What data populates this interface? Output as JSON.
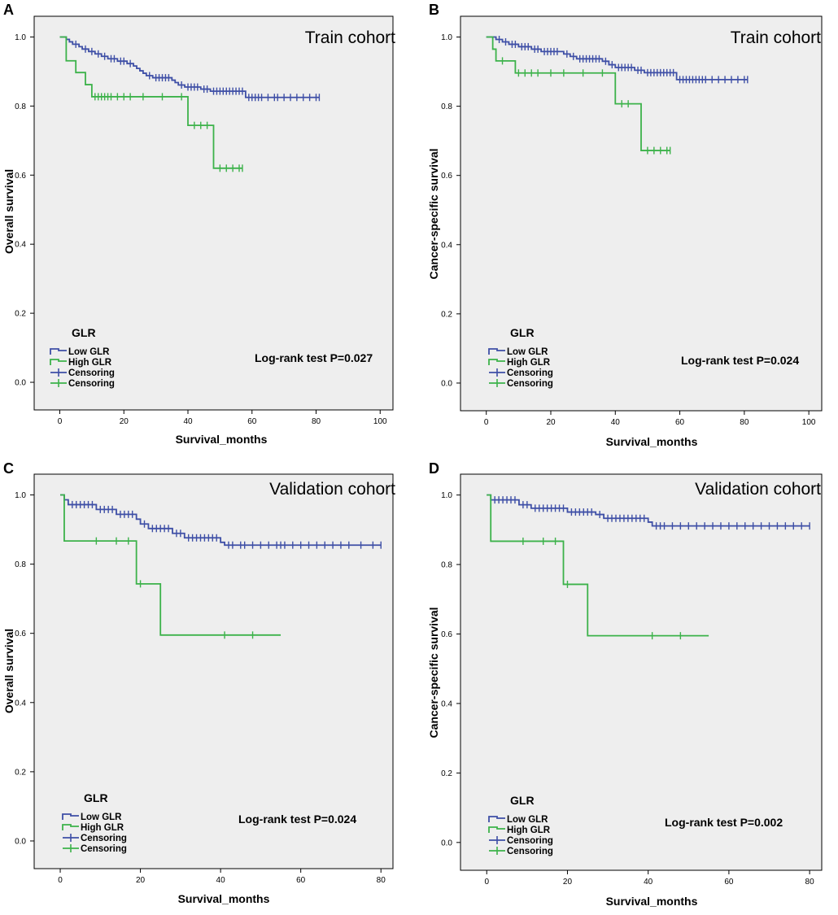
{
  "colors": {
    "low": "#3e4fa6",
    "high": "#3cb24a",
    "plot_bg": "#eeeeee",
    "axis": "#000000"
  },
  "chart_data": [
    {
      "panel": "A",
      "type": "line",
      "chart_title": "Train cohort",
      "xlabel": "Survival_months",
      "ylabel": "Overall survival",
      "xlim": [
        -8,
        104
      ],
      "ylim": [
        -0.08,
        1.06
      ],
      "xticks": [
        0,
        20,
        40,
        60,
        80,
        100
      ],
      "xtick_labels": [
        "0",
        "20",
        "40",
        "60",
        "80",
        "100"
      ],
      "yticks": [
        0,
        0.2,
        0.4,
        0.6,
        0.8,
        1.0
      ],
      "ytick_labels": [
        "0.0",
        "0.2",
        "0.4",
        "0.6",
        "0.8",
        "1.0"
      ],
      "legend": {
        "title": "GLR",
        "items": [
          "Low GLR",
          "High GLR",
          "Censoring",
          "Censoring"
        ],
        "placement": "bottom-left"
      },
      "annotation": "Log-rank test P=0.027",
      "series": [
        {
          "name": "Low GLR",
          "steps": [
            [
              0,
              1.0
            ],
            [
              2,
              0.993
            ],
            [
              3,
              0.986
            ],
            [
              4,
              0.979
            ],
            [
              6,
              0.972
            ],
            [
              7,
              0.965
            ],
            [
              9,
              0.958
            ],
            [
              11,
              0.951
            ],
            [
              13,
              0.944
            ],
            [
              15,
              0.937
            ],
            [
              18,
              0.93
            ],
            [
              21,
              0.923
            ],
            [
              23,
              0.916
            ],
            [
              24,
              0.909
            ],
            [
              25,
              0.902
            ],
            [
              26,
              0.895
            ],
            [
              27,
              0.888
            ],
            [
              29,
              0.882
            ],
            [
              35,
              0.875
            ],
            [
              36,
              0.868
            ],
            [
              37,
              0.861
            ],
            [
              39,
              0.855
            ],
            [
              44,
              0.849
            ],
            [
              47,
              0.843
            ],
            [
              58,
              0.825
            ]
          ],
          "end": 81,
          "censor": [
            5,
            8,
            10,
            12,
            14,
            16,
            17,
            19,
            20,
            22,
            28,
            30,
            31,
            32,
            33,
            34,
            38,
            40,
            41,
            42,
            43,
            45,
            46,
            48,
            49,
            50,
            51,
            52,
            53,
            54,
            55,
            56,
            57,
            59,
            60,
            61,
            62,
            63,
            65,
            67,
            68,
            70,
            72,
            74,
            76,
            78,
            80,
            81
          ]
        },
        {
          "name": "High GLR",
          "steps": [
            [
              0,
              1.0
            ],
            [
              2,
              0.931
            ],
            [
              5,
              0.897
            ],
            [
              8,
              0.862
            ],
            [
              10,
              0.827
            ],
            [
              40,
              0.744
            ],
            [
              48,
              0.62
            ]
          ],
          "end": 57,
          "censor": [
            11,
            12,
            13,
            14,
            15,
            16,
            18,
            20,
            22,
            26,
            32,
            38,
            42,
            44,
            46,
            50,
            52,
            54,
            56,
            57
          ]
        }
      ]
    },
    {
      "panel": "B",
      "type": "line",
      "chart_title": "Train cohort",
      "xlabel": "Survival_months",
      "ylabel": "Cancer-specific survival",
      "xlim": [
        -8,
        104
      ],
      "ylim": [
        -0.08,
        1.06
      ],
      "xticks": [
        0,
        20,
        40,
        60,
        80,
        100
      ],
      "xtick_labels": [
        "0",
        "20",
        "40",
        "60",
        "80",
        "100"
      ],
      "yticks": [
        0,
        0.2,
        0.4,
        0.6,
        0.8,
        1.0
      ],
      "ytick_labels": [
        "0.0",
        "0.2",
        "0.4",
        "0.6",
        "0.8",
        "1.0"
      ],
      "legend": {
        "title": "GLR",
        "items": [
          "Low GLR",
          "High GLR",
          "Censoring",
          "Censoring"
        ],
        "placement": "bottom-left"
      },
      "annotation": "Log-rank test P=0.024",
      "series": [
        {
          "name": "Low GLR",
          "steps": [
            [
              0,
              1.0
            ],
            [
              3,
              0.993
            ],
            [
              5,
              0.986
            ],
            [
              7,
              0.979
            ],
            [
              10,
              0.972
            ],
            [
              14,
              0.965
            ],
            [
              17,
              0.958
            ],
            [
              24,
              0.951
            ],
            [
              26,
              0.944
            ],
            [
              28,
              0.937
            ],
            [
              36,
              0.93
            ],
            [
              38,
              0.92
            ],
            [
              40,
              0.912
            ],
            [
              46,
              0.904
            ],
            [
              49,
              0.897
            ],
            [
              59,
              0.877
            ]
          ],
          "end": 81,
          "censor": [
            4,
            6,
            8,
            9,
            11,
            12,
            13,
            15,
            16,
            18,
            19,
            20,
            21,
            22,
            25,
            27,
            29,
            30,
            31,
            32,
            33,
            34,
            35,
            37,
            39,
            41,
            42,
            43,
            44,
            45,
            47,
            48,
            50,
            51,
            52,
            53,
            54,
            55,
            56,
            57,
            58,
            60,
            61,
            62,
            63,
            64,
            65,
            66,
            67,
            68,
            70,
            72,
            74,
            76,
            78,
            80,
            81
          ]
        },
        {
          "name": "High GLR",
          "steps": [
            [
              0,
              1.0
            ],
            [
              2,
              0.965
            ],
            [
              3,
              0.931
            ],
            [
              9,
              0.896
            ],
            [
              40,
              0.807
            ],
            [
              48,
              0.672
            ]
          ],
          "end": 57,
          "censor": [
            5,
            10,
            12,
            14,
            16,
            20,
            24,
            30,
            36,
            42,
            44,
            50,
            52,
            54,
            56,
            57
          ]
        }
      ]
    },
    {
      "panel": "C",
      "type": "line",
      "chart_title": "Validation cohort",
      "xlabel": "Survival_months",
      "ylabel": "Overall survival",
      "xlim": [
        -6.5,
        83
      ],
      "ylim": [
        -0.08,
        1.06
      ],
      "xticks": [
        0,
        20,
        40,
        60,
        80
      ],
      "xtick_labels": [
        "0",
        "20",
        "40",
        "60",
        "80"
      ],
      "yticks": [
        0,
        0.2,
        0.4,
        0.6,
        0.8,
        1.0
      ],
      "ytick_labels": [
        "0.0",
        "0.2",
        "0.4",
        "0.6",
        "0.8",
        "1.0"
      ],
      "legend": {
        "title": "GLR",
        "items": [
          "Low GLR",
          "High GLR",
          "Censoring",
          "Censoring"
        ],
        "placement": "bottom-left"
      },
      "annotation": "Log-rank test P=0.024",
      "series": [
        {
          "name": "Low GLR",
          "steps": [
            [
              0,
              1.0
            ],
            [
              1,
              0.986
            ],
            [
              2,
              0.972
            ],
            [
              9,
              0.958
            ],
            [
              14,
              0.944
            ],
            [
              19,
              0.93
            ],
            [
              20,
              0.916
            ],
            [
              22,
              0.903
            ],
            [
              28,
              0.889
            ],
            [
              31,
              0.876
            ],
            [
              40,
              0.863
            ],
            [
              41,
              0.855
            ]
          ],
          "end": 80,
          "censor": [
            3,
            4,
            5,
            6,
            7,
            8,
            10,
            11,
            12,
            13,
            15,
            16,
            17,
            18,
            21,
            23,
            24,
            25,
            26,
            27,
            29,
            30,
            32,
            33,
            34,
            35,
            36,
            37,
            38,
            39,
            42,
            43,
            45,
            46,
            48,
            50,
            52,
            54,
            55,
            56,
            58,
            60,
            62,
            64,
            66,
            68,
            70,
            72,
            75,
            78,
            80
          ]
        },
        {
          "name": "High GLR",
          "steps": [
            [
              0,
              1.0
            ],
            [
              1,
              0.867
            ],
            [
              19,
              0.743
            ],
            [
              25,
              0.595
            ]
          ],
          "end": 55,
          "censor": [
            9,
            14,
            17,
            20,
            41,
            48
          ]
        }
      ]
    },
    {
      "panel": "D",
      "type": "line",
      "chart_title": "Validation cohort",
      "xlabel": "Survival_months",
      "ylabel": "Cancer-specific survival",
      "xlim": [
        -6.5,
        83
      ],
      "ylim": [
        -0.08,
        1.06
      ],
      "xticks": [
        0,
        20,
        40,
        60,
        80
      ],
      "xtick_labels": [
        "0",
        "20",
        "40",
        "60",
        "80"
      ],
      "yticks": [
        0,
        0.2,
        0.4,
        0.6,
        0.8,
        1.0
      ],
      "ytick_labels": [
        "0.0",
        "0.2",
        "0.4",
        "0.6",
        "0.8",
        "1.0"
      ],
      "legend": {
        "title": "GLR",
        "items": [
          "Low GLR",
          "High GLR",
          "Censoring",
          "Censoring"
        ],
        "placement": "bottom-left"
      },
      "annotation": "Log-rank test P=0.002",
      "series": [
        {
          "name": "Low GLR",
          "steps": [
            [
              0,
              1.0
            ],
            [
              1,
              0.986
            ],
            [
              8,
              0.972
            ],
            [
              11,
              0.962
            ],
            [
              20,
              0.951
            ],
            [
              27,
              0.944
            ],
            [
              29,
              0.933
            ],
            [
              40,
              0.922
            ],
            [
              41,
              0.911
            ]
          ],
          "end": 80,
          "censor": [
            2,
            3,
            4,
            5,
            6,
            7,
            9,
            10,
            12,
            13,
            14,
            15,
            16,
            17,
            18,
            19,
            21,
            22,
            23,
            24,
            25,
            26,
            28,
            30,
            31,
            32,
            33,
            34,
            35,
            36,
            37,
            38,
            39,
            42,
            43,
            44,
            46,
            48,
            50,
            52,
            54,
            56,
            58,
            60,
            62,
            64,
            66,
            68,
            70,
            72,
            74,
            76,
            78,
            80
          ]
        },
        {
          "name": "High GLR",
          "steps": [
            [
              0,
              1.0
            ],
            [
              1,
              0.867
            ],
            [
              19,
              0.743
            ],
            [
              25,
              0.595
            ]
          ],
          "end": 55,
          "censor": [
            9,
            14,
            17,
            20,
            41,
            48
          ]
        }
      ]
    }
  ]
}
